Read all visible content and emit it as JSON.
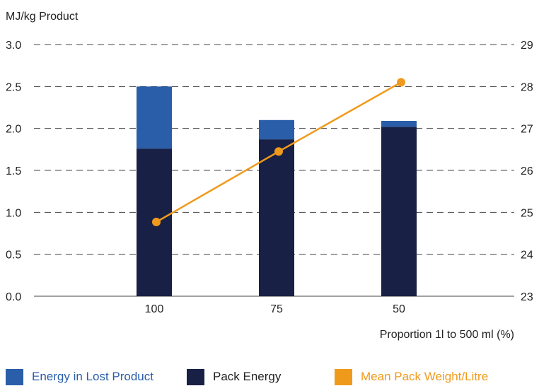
{
  "chart_data": {
    "type": "bar",
    "y_unit_label": "MJ/kg Product",
    "xlabel": "Proportion 1l to 500 ml (%)",
    "categories": [
      "100",
      "75",
      "50"
    ],
    "left_axis": {
      "ylim": [
        0,
        3.0
      ],
      "ticks": [
        "0.0",
        "0.5",
        "1.0",
        "1.5",
        "2.0",
        "2.5",
        "3.0"
      ]
    },
    "right_axis": {
      "ylim": [
        23,
        29
      ],
      "ticks": [
        "23",
        "24",
        "25",
        "26",
        "27",
        "28",
        "29"
      ]
    },
    "stacked": true,
    "series": [
      {
        "name": "Pack Energy",
        "type": "bar",
        "axis": "left",
        "values": [
          1.76,
          1.87,
          2.02
        ],
        "color": "#182046"
      },
      {
        "name": "Energy in Lost Product",
        "type": "bar",
        "axis": "left",
        "values": [
          0.74,
          0.23,
          0.07
        ],
        "color": "#2a5ea8"
      },
      {
        "name": "Mean Pack Weight/Litre",
        "type": "line",
        "axis": "right",
        "values": [
          24.77,
          26.45,
          28.1
        ],
        "color": "#f09a1b"
      }
    ],
    "grid": "dashed horizontal",
    "legend": "bottom"
  },
  "legend": {
    "lost": "Energy in Lost Product",
    "pack": "Pack Energy",
    "mean": "Mean Pack Weight/Litre"
  },
  "colors": {
    "lost": "#2a5ea8",
    "pack": "#182046",
    "mean": "#f09a1b",
    "mean_text": "#f09a1b"
  }
}
